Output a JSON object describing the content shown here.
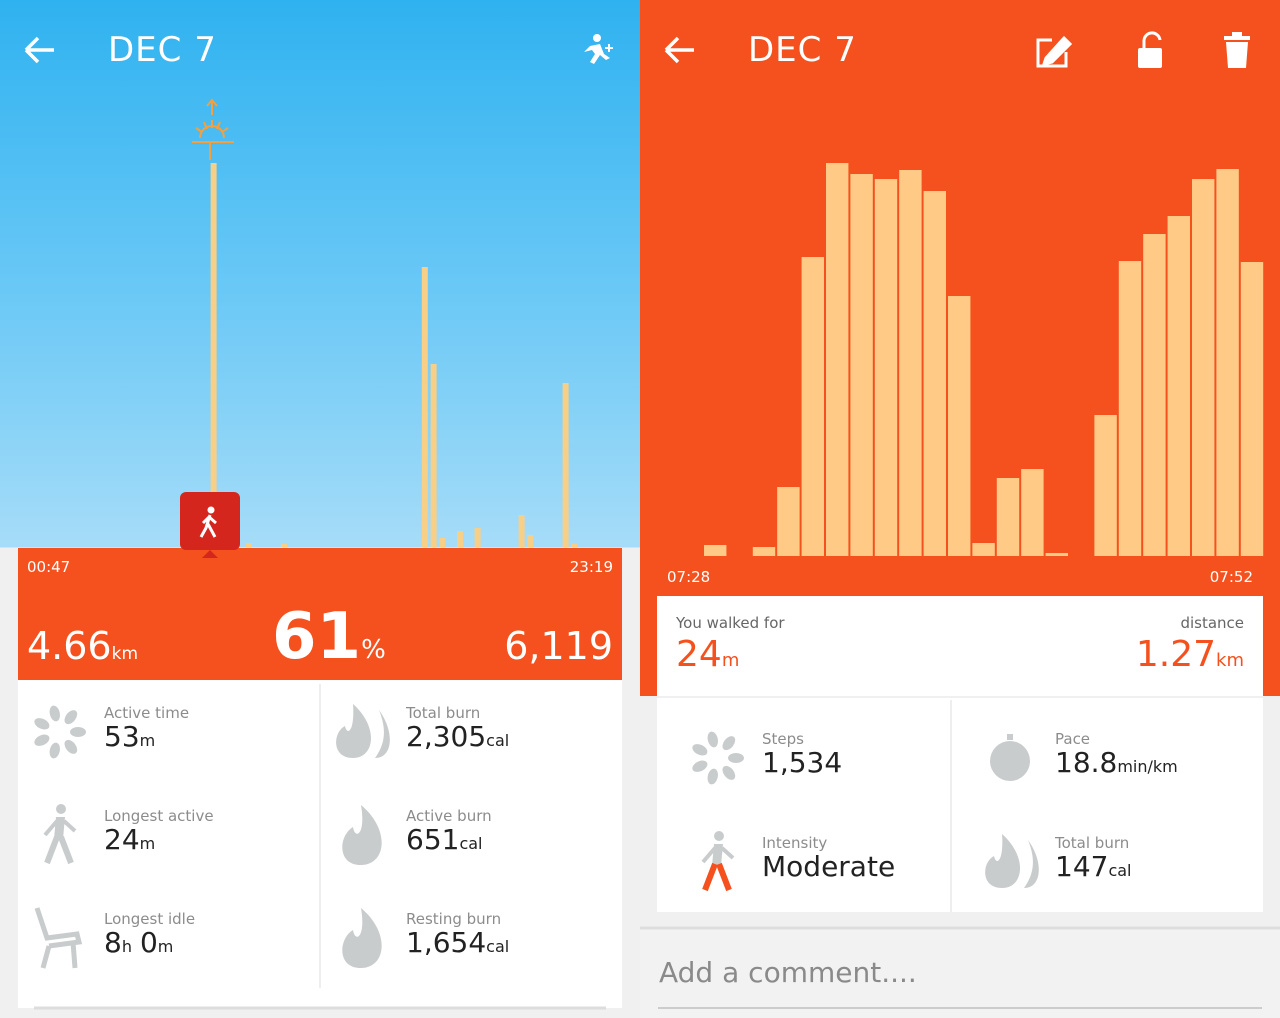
{
  "left": {
    "header": {
      "title": "DEC 7"
    },
    "chart": {
      "bars": [
        0,
        0,
        0,
        0,
        0,
        0,
        0,
        0,
        0,
        0,
        0,
        0,
        0,
        0,
        0,
        0,
        0,
        0,
        0,
        0,
        0,
        0,
        384,
        0,
        0,
        0,
        4,
        0,
        0,
        0,
        3,
        0,
        0,
        0,
        0,
        0,
        0,
        0,
        0,
        0,
        0,
        0,
        0,
        0,
        0,
        0,
        280,
        183,
        9,
        0,
        16,
        0,
        19,
        0,
        0,
        0,
        0,
        32,
        12,
        0,
        0,
        0,
        164,
        3,
        0,
        0,
        0,
        0
      ],
      "start": "00:47",
      "end": "23:19"
    },
    "summary": {
      "distance": {
        "n": "4.66",
        "u": "km"
      },
      "percent": {
        "n": "61",
        "u": "%"
      },
      "steps": "6,119"
    },
    "stats": [
      {
        "label": "Active time",
        "parts": [
          {
            "n": "53",
            "u": "m"
          }
        ]
      },
      {
        "label": "Total burn",
        "parts": [
          {
            "n": "2,305",
            "u": "cal"
          }
        ]
      },
      {
        "label": "Longest active",
        "parts": [
          {
            "n": "24",
            "u": "m"
          }
        ]
      },
      {
        "label": "Active burn",
        "parts": [
          {
            "n": "651",
            "u": "cal"
          }
        ]
      },
      {
        "label": "Longest idle",
        "parts": [
          {
            "n": "8",
            "u": "h"
          },
          {
            "n": "0",
            "u": "m"
          }
        ]
      },
      {
        "label": "Resting burn",
        "parts": [
          {
            "n": "1,654",
            "u": "cal"
          }
        ]
      }
    ]
  },
  "right": {
    "header": {
      "title": "DEC 7"
    },
    "chart": {
      "bars": [
        0,
        11,
        0,
        9,
        69,
        299,
        393,
        382,
        377,
        386,
        365,
        260,
        13,
        78,
        87,
        3,
        0,
        141,
        295,
        322,
        340,
        377,
        387,
        294
      ],
      "start": "07:28",
      "end": "07:52"
    },
    "walked": {
      "label": "You walked for",
      "n": "24",
      "u": "m"
    },
    "distance": {
      "label": "distance",
      "n": "1.27",
      "u": "km"
    },
    "stats": [
      {
        "label": "Steps",
        "parts": [
          {
            "n": "1,534"
          }
        ]
      },
      {
        "label": "Pace",
        "parts": [
          {
            "n": "18.8",
            "u": "min/km"
          }
        ]
      },
      {
        "label": "Intensity",
        "parts": [
          {
            "n": "Moderate"
          }
        ]
      },
      {
        "label": "Total burn",
        "parts": [
          {
            "n": "147",
            "u": "cal"
          }
        ]
      }
    ],
    "comment": "Add a comment...."
  }
}
